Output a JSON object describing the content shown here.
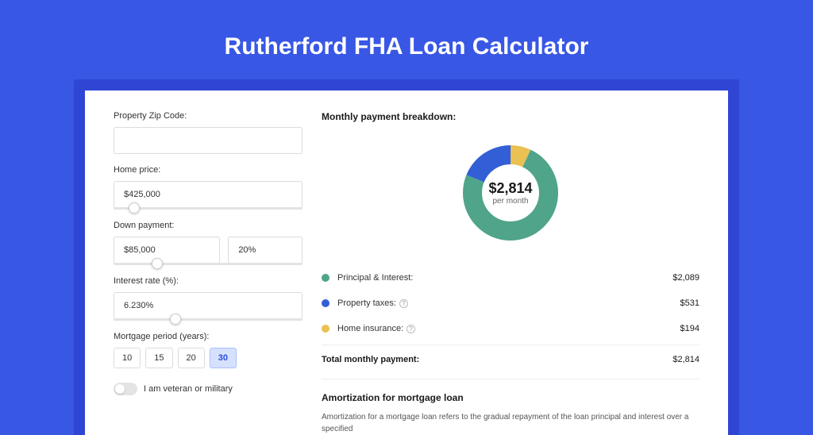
{
  "page": {
    "title": "Rutherford FHA Loan Calculator",
    "background_color": "#3957e5",
    "band_color": "#2f46d4",
    "card_color": "#ffffff"
  },
  "form": {
    "zip": {
      "label": "Property Zip Code:",
      "value": ""
    },
    "home_price": {
      "label": "Home price:",
      "value": "$425,000",
      "slider_pct": 8
    },
    "down_payment": {
      "label": "Down payment:",
      "amount": "$85,000",
      "percent": "20%",
      "slider_pct": 20
    },
    "interest_rate": {
      "label": "Interest rate (%):",
      "value": "6.230%",
      "slider_pct": 30
    },
    "mortgage_period": {
      "label": "Mortgage period (years):",
      "options": [
        "10",
        "15",
        "20",
        "30"
      ],
      "selected": "30"
    },
    "veteran": {
      "label": "I am veteran or military",
      "checked": false
    }
  },
  "breakdown": {
    "title": "Monthly payment breakdown:",
    "donut": {
      "type": "donut",
      "amount": "$2,814",
      "subtitle": "per month",
      "size": 120,
      "thickness": 24,
      "slices": [
        {
          "key": "principal_interest",
          "value": 2089,
          "pct": 74.2,
          "color": "#4fa48a"
        },
        {
          "key": "property_taxes",
          "value": 531,
          "pct": 18.9,
          "color": "#335fd6"
        },
        {
          "key": "home_insurance",
          "value": 194,
          "pct": 6.9,
          "color": "#eac152"
        }
      ],
      "background_color": "#ffffff",
      "center_text_color": "#1a1a1a",
      "center_sub_color": "#666666"
    },
    "rows": [
      {
        "label": "Principal & Interest:",
        "value": "$2,089",
        "color": "#4fa48a",
        "info": false
      },
      {
        "label": "Property taxes:",
        "value": "$531",
        "color": "#335fd6",
        "info": true
      },
      {
        "label": "Home insurance:",
        "value": "$194",
        "color": "#eac152",
        "info": true
      }
    ],
    "total": {
      "label": "Total monthly payment:",
      "value": "$2,814"
    }
  },
  "amortization": {
    "title": "Amortization for mortgage loan",
    "text": "Amortization for a mortgage loan refers to the gradual repayment of the loan principal and interest over a specified"
  }
}
